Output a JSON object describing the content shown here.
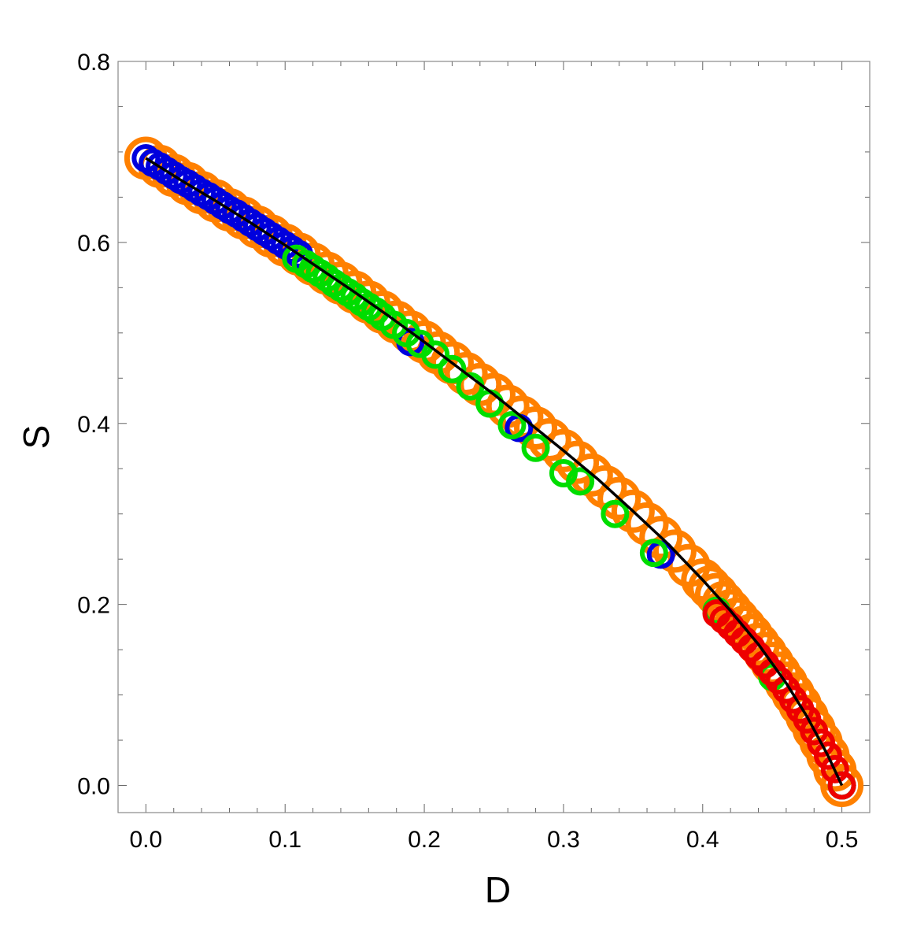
{
  "chart_data": {
    "type": "scatter",
    "title": "",
    "xlabel": "D",
    "ylabel": "S",
    "xlim": [
      -0.02,
      0.52
    ],
    "ylim": [
      -0.03,
      0.8
    ],
    "grid": false,
    "legend": "none",
    "xticks": [
      {
        "value": 0.0,
        "label": "0.0"
      },
      {
        "value": 0.1,
        "label": "0.1"
      },
      {
        "value": 0.2,
        "label": "0.2"
      },
      {
        "value": 0.3,
        "label": "0.3"
      },
      {
        "value": 0.4,
        "label": "0.4"
      },
      {
        "value": 0.5,
        "label": "0.5"
      }
    ],
    "yticks": [
      {
        "value": 0.0,
        "label": "0.0"
      },
      {
        "value": 0.2,
        "label": "0.2"
      },
      {
        "value": 0.4,
        "label": "0.4"
      },
      {
        "value": 0.6,
        "label": "0.6"
      },
      {
        "value": 0.8,
        "label": "0.8"
      }
    ],
    "curve": {
      "color": "#000000",
      "x": [
        0.0,
        0.025,
        0.05,
        0.075,
        0.1,
        0.125,
        0.15,
        0.175,
        0.2,
        0.225,
        0.25,
        0.275,
        0.3,
        0.325,
        0.35,
        0.375,
        0.4,
        0.42,
        0.44,
        0.46,
        0.475,
        0.49,
        0.5
      ],
      "y": [
        0.693,
        0.669,
        0.646,
        0.622,
        0.597,
        0.571,
        0.545,
        0.518,
        0.49,
        0.461,
        0.432,
        0.401,
        0.37,
        0.338,
        0.303,
        0.267,
        0.227,
        0.193,
        0.156,
        0.113,
        0.076,
        0.033,
        0.0
      ]
    },
    "series": [
      {
        "color": "#ff8000",
        "marker": "large-open-circle",
        "x": [
          0.0,
          0.01,
          0.02,
          0.03,
          0.04,
          0.05,
          0.06,
          0.07,
          0.08,
          0.09,
          0.1,
          0.11,
          0.12,
          0.13,
          0.14,
          0.15,
          0.16,
          0.17,
          0.18,
          0.19,
          0.2,
          0.21,
          0.22,
          0.23,
          0.24,
          0.25,
          0.26,
          0.27,
          0.28,
          0.29,
          0.3,
          0.31,
          0.32,
          0.33,
          0.34,
          0.35,
          0.36,
          0.37,
          0.38,
          0.39,
          0.4,
          0.405,
          0.41,
          0.415,
          0.42,
          0.425,
          0.43,
          0.435,
          0.44,
          0.445,
          0.45,
          0.455,
          0.46,
          0.465,
          0.47,
          0.475,
          0.48,
          0.485,
          0.49,
          0.495,
          0.5
        ],
        "y": [
          0.693,
          0.684,
          0.674,
          0.665,
          0.655,
          0.646,
          0.636,
          0.627,
          0.617,
          0.607,
          0.597,
          0.587,
          0.576,
          0.566,
          0.555,
          0.545,
          0.534,
          0.523,
          0.512,
          0.501,
          0.49,
          0.478,
          0.467,
          0.455,
          0.443,
          0.432,
          0.419,
          0.407,
          0.395,
          0.382,
          0.37,
          0.357,
          0.343,
          0.33,
          0.317,
          0.303,
          0.289,
          0.274,
          0.259,
          0.243,
          0.227,
          0.219,
          0.211,
          0.202,
          0.193,
          0.184,
          0.175,
          0.166,
          0.156,
          0.146,
          0.135,
          0.124,
          0.113,
          0.101,
          0.089,
          0.076,
          0.062,
          0.048,
          0.033,
          0.017,
          0.0
        ]
      },
      {
        "color": "#0000dd",
        "marker": "open-circle",
        "x": [
          0.0,
          0.005,
          0.01,
          0.015,
          0.02,
          0.025,
          0.03,
          0.035,
          0.04,
          0.045,
          0.05,
          0.055,
          0.06,
          0.065,
          0.07,
          0.075,
          0.08,
          0.085,
          0.09,
          0.095,
          0.1,
          0.105,
          0.11,
          0.135,
          0.19,
          0.268,
          0.37,
          0.5
        ],
        "y": [
          0.693,
          0.688,
          0.684,
          0.679,
          0.674,
          0.669,
          0.665,
          0.66,
          0.655,
          0.651,
          0.646,
          0.641,
          0.636,
          0.632,
          0.627,
          0.622,
          0.617,
          0.612,
          0.607,
          0.602,
          0.597,
          0.592,
          0.587,
          0.555,
          0.49,
          0.395,
          0.255,
          0.0
        ]
      },
      {
        "color": "#00dd00",
        "marker": "open-circle",
        "x": [
          0.108,
          0.115,
          0.12,
          0.125,
          0.13,
          0.135,
          0.14,
          0.145,
          0.15,
          0.155,
          0.16,
          0.165,
          0.17,
          0.178,
          0.187,
          0.197,
          0.208,
          0.22,
          0.233,
          0.247,
          0.263,
          0.28,
          0.3,
          0.312,
          0.337,
          0.365,
          0.41,
          0.45,
          0.5
        ],
        "y": [
          0.582,
          0.576,
          0.571,
          0.566,
          0.561,
          0.555,
          0.55,
          0.545,
          0.54,
          0.534,
          0.529,
          0.524,
          0.518,
          0.509,
          0.5,
          0.488,
          0.476,
          0.46,
          0.441,
          0.422,
          0.398,
          0.373,
          0.345,
          0.336,
          0.3,
          0.257,
          0.193,
          0.12,
          0.0
        ]
      },
      {
        "color": "#ee0000",
        "marker": "open-circle",
        "x": [
          0.41,
          0.415,
          0.42,
          0.425,
          0.43,
          0.435,
          0.44,
          0.445,
          0.45,
          0.455,
          0.46,
          0.465,
          0.47,
          0.475,
          0.48,
          0.485,
          0.49,
          0.495,
          0.5
        ],
        "y": [
          0.19,
          0.183,
          0.176,
          0.168,
          0.16,
          0.152,
          0.143,
          0.134,
          0.125,
          0.116,
          0.106,
          0.095,
          0.084,
          0.073,
          0.06,
          0.047,
          0.033,
          0.018,
          0.0
        ]
      }
    ]
  }
}
